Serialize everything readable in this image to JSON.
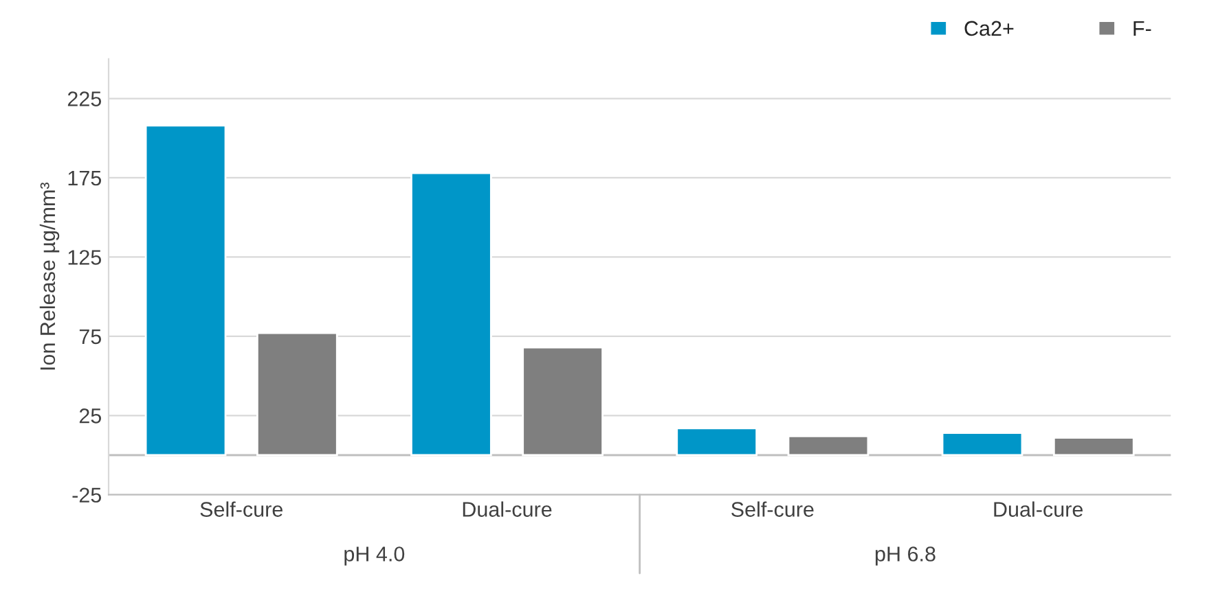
{
  "chart_data": {
    "type": "bar",
    "ylabel": "Ion Release µg/mm³",
    "categories": [
      "Self-cure",
      "Dual-cure",
      "Self-cure",
      "Dual-cure"
    ],
    "series": [
      {
        "name": "Ca2+",
        "color": "#0096c8",
        "values": [
          208,
          178,
          17,
          14
        ]
      },
      {
        "name": "F-",
        "color": "#7f7f7f",
        "values": [
          77,
          68,
          12,
          11
        ]
      }
    ],
    "annotations": [
      "pH 4.0",
      "pH 6.8"
    ],
    "ylim": [
      -25,
      250
    ],
    "yticks": [
      {
        "value": -25,
        "label": "-25"
      },
      25,
      75,
      125,
      175,
      225
    ],
    "grid": "y",
    "legend": "top right"
  }
}
